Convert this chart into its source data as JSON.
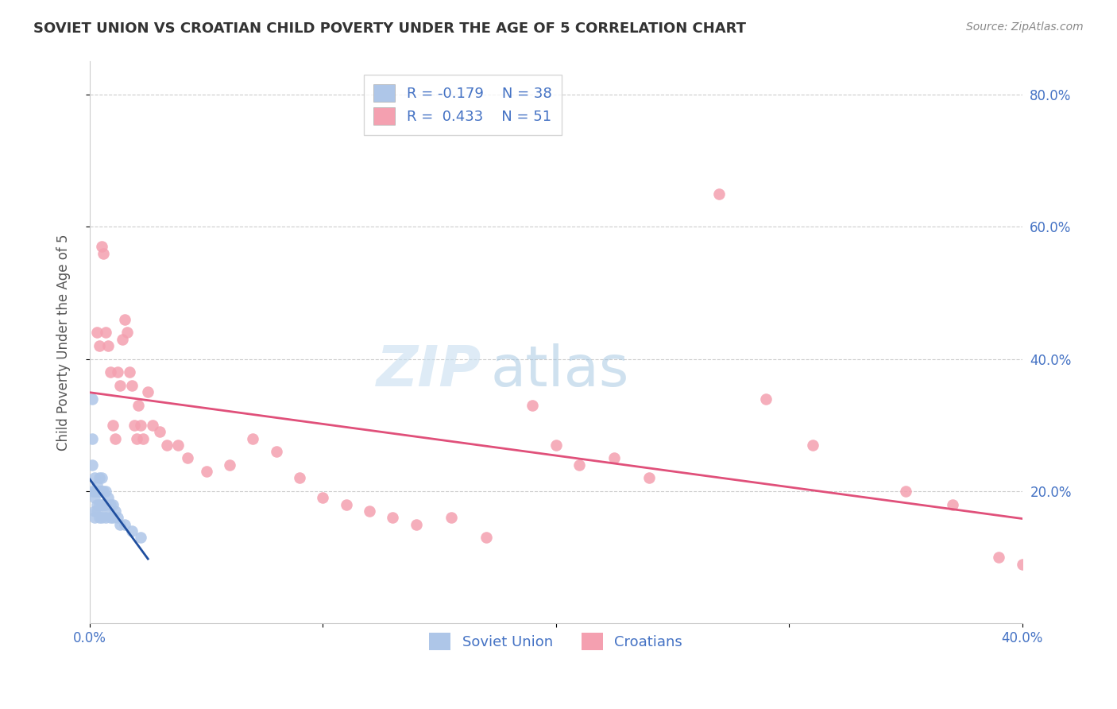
{
  "title": "SOVIET UNION VS CROATIAN CHILD POVERTY UNDER THE AGE OF 5 CORRELATION CHART",
  "source": "Source: ZipAtlas.com",
  "ylabel": "Child Poverty Under the Age of 5",
  "xlim": [
    0.0,
    0.4
  ],
  "ylim": [
    0.0,
    0.85
  ],
  "xticks": [
    0.0,
    0.1,
    0.2,
    0.3,
    0.4
  ],
  "yticks": [
    0.2,
    0.4,
    0.6,
    0.8
  ],
  "ytick_labels": [
    "20.0%",
    "40.0%",
    "60.0%",
    "80.0%"
  ],
  "xtick_labels": [
    "0.0%",
    "",
    "",
    "",
    "40.0%"
  ],
  "grid_color": "#cccccc",
  "background_color": "#ffffff",
  "legend_r1": "R = -0.179",
  "legend_n1": "N = 38",
  "legend_r2": "R =  0.433",
  "legend_n2": "N = 51",
  "soviet_color": "#aec6e8",
  "croatian_color": "#f4a0b0",
  "soviet_line_color": "#1f4e9e",
  "croatian_line_color": "#e0507a",
  "soviet_x": [
    0.001,
    0.001,
    0.001,
    0.001,
    0.002,
    0.002,
    0.002,
    0.002,
    0.002,
    0.003,
    0.003,
    0.003,
    0.003,
    0.004,
    0.004,
    0.004,
    0.004,
    0.005,
    0.005,
    0.005,
    0.005,
    0.006,
    0.006,
    0.007,
    0.007,
    0.007,
    0.008,
    0.008,
    0.009,
    0.009,
    0.01,
    0.01,
    0.011,
    0.012,
    0.013,
    0.015,
    0.018,
    0.022
  ],
  "soviet_y": [
    0.34,
    0.28,
    0.24,
    0.2,
    0.22,
    0.2,
    0.19,
    0.17,
    0.16,
    0.21,
    0.2,
    0.18,
    0.17,
    0.22,
    0.2,
    0.18,
    0.16,
    0.22,
    0.2,
    0.18,
    0.16,
    0.2,
    0.18,
    0.2,
    0.18,
    0.16,
    0.19,
    0.17,
    0.18,
    0.16,
    0.18,
    0.16,
    0.17,
    0.16,
    0.15,
    0.15,
    0.14,
    0.13
  ],
  "croatian_x": [
    0.003,
    0.004,
    0.005,
    0.006,
    0.007,
    0.008,
    0.009,
    0.01,
    0.011,
    0.012,
    0.013,
    0.014,
    0.015,
    0.016,
    0.017,
    0.018,
    0.019,
    0.02,
    0.021,
    0.022,
    0.023,
    0.025,
    0.027,
    0.03,
    0.033,
    0.038,
    0.042,
    0.05,
    0.06,
    0.07,
    0.08,
    0.09,
    0.1,
    0.11,
    0.12,
    0.13,
    0.14,
    0.155,
    0.17,
    0.19,
    0.2,
    0.21,
    0.225,
    0.24,
    0.27,
    0.29,
    0.31,
    0.35,
    0.37,
    0.39,
    0.4
  ],
  "croatian_y": [
    0.44,
    0.42,
    0.57,
    0.56,
    0.44,
    0.42,
    0.38,
    0.3,
    0.28,
    0.38,
    0.36,
    0.43,
    0.46,
    0.44,
    0.38,
    0.36,
    0.3,
    0.28,
    0.33,
    0.3,
    0.28,
    0.35,
    0.3,
    0.29,
    0.27,
    0.27,
    0.25,
    0.23,
    0.24,
    0.28,
    0.26,
    0.22,
    0.19,
    0.18,
    0.17,
    0.16,
    0.15,
    0.16,
    0.13,
    0.33,
    0.27,
    0.24,
    0.25,
    0.22,
    0.65,
    0.34,
    0.27,
    0.2,
    0.18,
    0.1,
    0.09
  ]
}
